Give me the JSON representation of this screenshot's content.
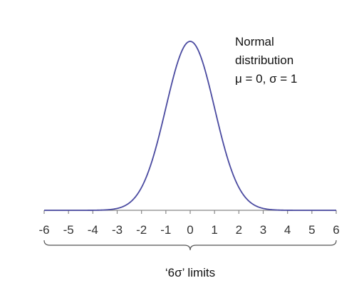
{
  "chart_data": {
    "type": "line",
    "distribution": "normal",
    "mean": 0,
    "sd": 1,
    "xlim": [
      -6,
      6
    ],
    "ylim": [
      0,
      0.4
    ],
    "x_ticks": [
      "-6",
      "-5",
      "-4",
      "-3",
      "-2",
      "-1",
      "0",
      "1",
      "2",
      "3",
      "4",
      "5",
      "6"
    ],
    "grid": false,
    "line_color": "#4a4aa0",
    "annotation": {
      "lines": [
        "Normal",
        "distribution",
        "μ = 0, σ = 1"
      ]
    },
    "brace": {
      "from": -6,
      "to": 6,
      "label": "‘6σ’ limits"
    }
  }
}
